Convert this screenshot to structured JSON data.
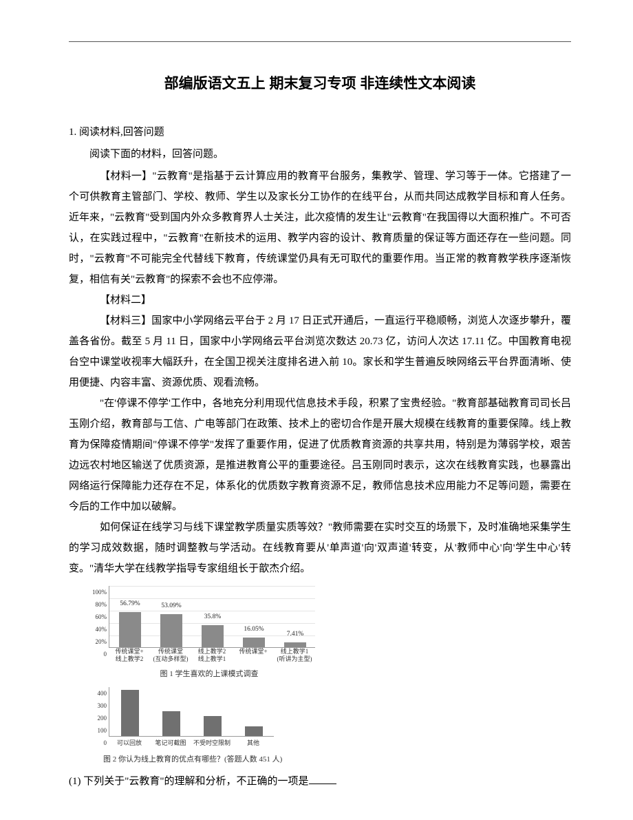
{
  "title": "部编版语文五上 期末复习专项 非连续性文本阅读",
  "q_number": "1. 阅读材料,回答问题",
  "stem": "阅读下面的材料，回答问题。",
  "material1": "【材料一】\"云教育\"是指基于云计算应用的教育平台服务，集教学、管理、学习等于一体。它搭建了一个可供教育主管部门、学校、教师、学生以及家长分工协作的在线平台，从而共同达成教学目标和育人任务。近年来，\"云教育\"受到国内外众多教育界人士关注，此次疫情的发生让\"云教育\"在我国得以大面积推广。不可否认，在实践过程中，\"云教育\"在新技术的运用、教学内容的设计、教育质量的保证等方面还存在一些问题。同时，\"云教育\"不可能完全代替线下教育，传统课堂仍具有无可取代的重要作用。当正常的教育教学秩序逐渐恢复，相信有关\"云教育\"的探索不会也不应停滞。",
  "material2_head": "【材料二】",
  "material3_p1": "【材料三】国家中小学网络云平台于 2 月 17 日正式开通后，一直运行平稳顺畅，浏览人次逐步攀升，覆盖各省份。截至 5 月 11 日，国家中小学网络云平台浏览次数达 20.73 亿，访问人次达 17.11 亿。中国教育电视台空中课堂收视率大幅跃升，在全国卫视关注度排名进入前 10。家长和学生普遍反映网络云平台界面清晰、使用便捷、内容丰富、资源优质、观看流畅。",
  "material3_p2": "\"在'停课不停学'工作中，各地充分利用现代信息技术手段，积累了宝贵经验。\"教育部基础教育司司长吕玉刚介绍，教育部与工信、广电等部门在政策、技术上的密切合作是开展大规模在线教育的重要保障。线上教育为保障疫情期间\"停课不停学\"发挥了重要作用，促进了优质教育资源的共享共用，特别是为薄弱学校，艰苦边远农村地区输送了优质资源，是推进教育公平的重要途径。吕玉刚同时表示，这次在线教育实践，也暴露出网络运行保障能力还存在不足，体系化的优质数字教育资源不足，教师信息技术应用能力不足等问题，需要在今后的工作中加以破解。",
  "material3_p3": "如何保证在线学习与线下课堂教学质量实质等效？\"教师需要在实时交互的场景下，及时准确地采集学生的学习成效数据，随时调整教与学活动。在线教育要从'单声道'向'双声道'转变，从'教师中心'向'学生中心'转变。\"清华大学在线教学指导专家组组长于歆杰介绍。",
  "chart1": {
    "type": "bar",
    "y_ticks": [
      "100%",
      "80%",
      "60%",
      "40%",
      "20%",
      "0"
    ],
    "ymax": 100,
    "categories": [
      {
        "line1": "传统课堂+",
        "line2": "线上教学2"
      },
      {
        "line1": "传统课堂",
        "line2": "(互动多样型)"
      },
      {
        "line1": "线上教学2",
        "line2": "线上教学1"
      },
      {
        "line1": "传统课堂+",
        "line2": ""
      },
      {
        "line1": "线上教学1",
        "line2": "(听讲为主型)"
      }
    ],
    "values": [
      56.79,
      53.09,
      35.8,
      16.05,
      7.41
    ],
    "labels": [
      "56.79%",
      "53.09%",
      "35.8%",
      "16.05%",
      "7.41%"
    ],
    "bar_color": "#8a8a8a",
    "grid_color": "#e5e5e5",
    "caption": "图 1  学生喜欢的上课模式调查"
  },
  "chart2": {
    "type": "bar",
    "y_ticks": [
      "400",
      "300",
      "200",
      "100",
      "0"
    ],
    "ymax": 400,
    "categories": [
      "可以回放",
      "笔记可截图",
      "不受时空限制",
      "其他"
    ],
    "values": [
      370,
      195,
      160,
      75
    ],
    "bar_color": "#707070",
    "caption": "图 2  你认为线上教育的优点有哪些？(答题人数 451 人)"
  },
  "subq1": "(1) 下列关于\"云教育\"的理解和分析，不正确的一项是"
}
